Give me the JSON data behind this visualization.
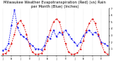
{
  "title": "Milwaukee Weather Evapotranspiration (Red) (vs) Rain per Month (Blue) (Inches)",
  "months_labels": [
    "J",
    "F",
    "M",
    "A",
    "M",
    "J",
    "J",
    "A",
    "S",
    "O",
    "N",
    "D",
    "J",
    "F",
    "M",
    "A",
    "M",
    "J",
    "J",
    "A",
    "S",
    "O",
    "N",
    "D",
    "J",
    "F",
    "M",
    "A",
    "M",
    "J",
    "J",
    "A",
    "S",
    "O",
    "N",
    "D"
  ],
  "rain": [
    0.8,
    1.0,
    1.8,
    4.5,
    6.8,
    4.2,
    3.2,
    2.8,
    2.5,
    1.8,
    1.5,
    1.0,
    1.0,
    0.9,
    1.5,
    2.8,
    2.5,
    3.8,
    2.8,
    3.5,
    3.2,
    3.8,
    3.2,
    2.5,
    2.0,
    1.5,
    2.0,
    3.0,
    3.5,
    3.8,
    3.2,
    3.5,
    3.0,
    2.0,
    1.8,
    1.5
  ],
  "evap": [
    0.2,
    0.3,
    0.8,
    1.8,
    3.2,
    4.8,
    5.2,
    4.5,
    3.2,
    1.5,
    0.5,
    0.2,
    0.2,
    0.3,
    1.0,
    2.2,
    3.8,
    5.0,
    5.5,
    5.0,
    3.5,
    1.8,
    0.6,
    0.2,
    0.2,
    0.4,
    1.0,
    2.2,
    3.8,
    4.8,
    5.5,
    4.8,
    3.2,
    1.8,
    0.6,
    0.2
  ],
  "rain_color": "#0000ee",
  "evap_color": "#dd0000",
  "ylim": [
    0,
    7
  ],
  "yticks": [
    1,
    2,
    3,
    4,
    5,
    6,
    7
  ],
  "bg_color": "#ffffff",
  "grid_color": "#999999",
  "title_fontsize": 3.8,
  "line_width": 0.55,
  "marker_size": 1.2
}
